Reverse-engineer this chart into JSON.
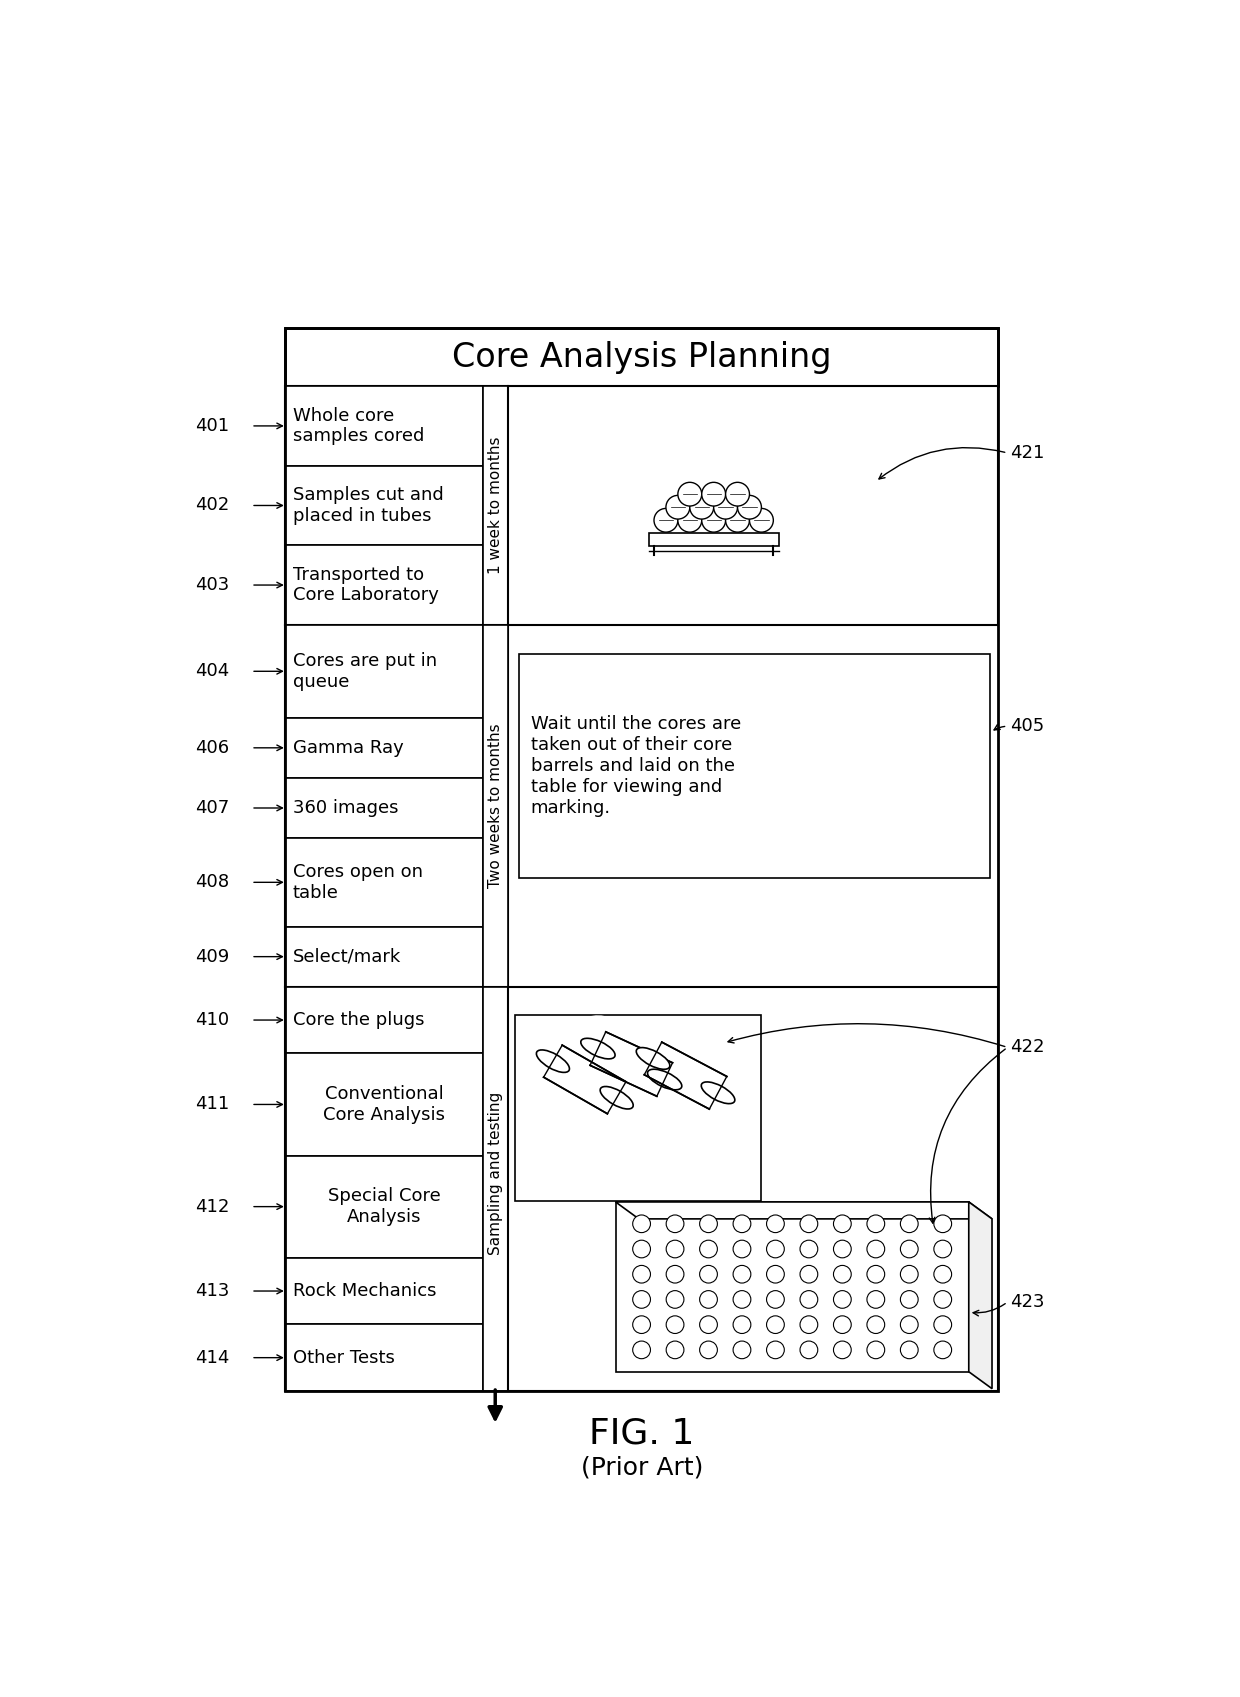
{
  "title": "Core Analysis Planning",
  "fig_label": "FIG. 1",
  "fig_sublabel": "(Prior Art)",
  "bg_color": "#ffffff",
  "section1": {
    "rows": [
      {
        "label": "Whole core\nsamples cored",
        "ref": "401"
      },
      {
        "label": "Samples cut and\nplaced in tubes",
        "ref": "402"
      },
      {
        "label": "Transported to\nCore Laboratory",
        "ref": "403"
      }
    ],
    "side_label": "1 week to months",
    "image_ref": "421"
  },
  "section2": {
    "rows": [
      {
        "label": "Cores are put in\nqueue",
        "ref": "404"
      },
      {
        "label": "Gamma Ray",
        "ref": "406"
      },
      {
        "label": "360 images",
        "ref": "407"
      },
      {
        "label": "Cores open on\ntable",
        "ref": "408"
      },
      {
        "label": "Select/mark",
        "ref": "409"
      }
    ],
    "side_label": "Two weeks to months",
    "text_box_text": "Wait until the cores are\ntaken out of their core\nbarrels and laid on the\ntable for viewing and\nmarking.",
    "text_ref": "405"
  },
  "section3": {
    "rows": [
      {
        "label": "Core the plugs",
        "ref": "410"
      },
      {
        "label": "Conventional\nCore Analysis",
        "ref": "411"
      },
      {
        "label": "Special Core\nAnalysis",
        "ref": "412"
      },
      {
        "label": "Rock Mechanics",
        "ref": "413"
      },
      {
        "label": "Other Tests",
        "ref": "414"
      }
    ],
    "side_label": "Sampling and testing",
    "image_ref1": "422",
    "image_ref2": "423"
  }
}
